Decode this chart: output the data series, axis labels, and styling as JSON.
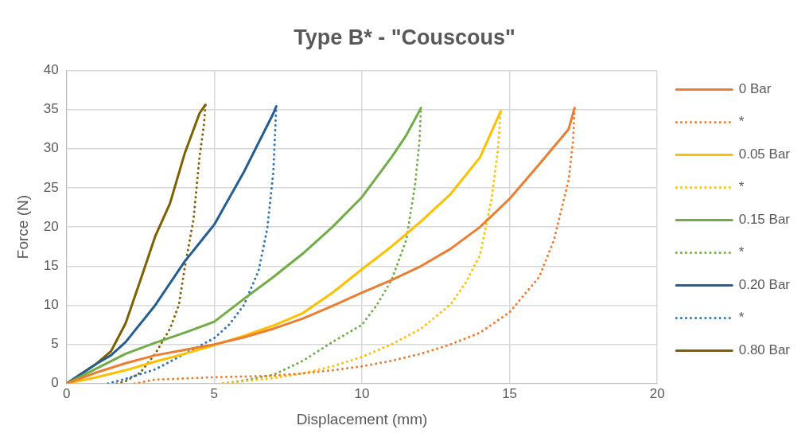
{
  "chart_data": {
    "type": "line",
    "title": "Type B* - \"Couscous\"",
    "xlabel": "Displacement (mm)",
    "ylabel": "Force (N)",
    "xlim": [
      0,
      20
    ],
    "xticks": [
      0,
      5,
      10,
      15,
      20
    ],
    "ylim": [
      0,
      40
    ],
    "yticks": [
      0,
      5,
      10,
      15,
      20,
      25,
      30,
      35,
      40
    ],
    "grid": true,
    "legend": "right",
    "marker": "none",
    "series": [
      {
        "name": "0 Bar",
        "color": "#ed7d31",
        "line_style": "solid",
        "x": [
          0,
          1,
          2,
          3,
          4,
          5,
          6,
          7,
          8,
          9,
          10,
          11,
          12,
          13,
          14,
          15,
          16,
          17,
          17.2
        ],
        "values": [
          0,
          1.4,
          2.6,
          3.6,
          4.3,
          5.0,
          5.9,
          7.0,
          8.3,
          9.9,
          11.6,
          13.2,
          15.0,
          17.2,
          20,
          23.6,
          28,
          32.5,
          35.2
        ]
      },
      {
        "name": "*",
        "color": "#ed7d31",
        "line_style": "dotted",
        "x": [
          2.3,
          3,
          5,
          7,
          8,
          9,
          10,
          11,
          12,
          13,
          14,
          15,
          16,
          16.5,
          17,
          17.15,
          17.2
        ],
        "values": [
          0,
          0.5,
          0.8,
          1.0,
          1.3,
          1.7,
          2.2,
          2.9,
          3.8,
          5,
          6.5,
          9.1,
          13.6,
          18.3,
          26,
          31,
          35.2
        ]
      },
      {
        "name": "0.05 Bar",
        "color": "#ffc000",
        "line_style": "solid",
        "x": [
          0,
          1,
          2,
          3,
          4,
          5,
          6,
          7,
          8,
          9,
          10,
          11,
          12,
          13,
          14,
          14.7
        ],
        "values": [
          0,
          0.8,
          1.7,
          2.8,
          3.8,
          4.9,
          6.1,
          7.4,
          9,
          11.6,
          14.6,
          17.5,
          20.7,
          24.2,
          28.9,
          34.8
        ]
      },
      {
        "name": "*",
        "color": "#ffc000",
        "line_style": "dotted",
        "x": [
          5.3,
          6,
          7,
          8,
          9,
          10,
          11,
          12,
          13,
          13.5,
          14,
          14.4,
          14.6,
          14.7
        ],
        "values": [
          0,
          0.3,
          0.7,
          1.3,
          2.2,
          3.4,
          5,
          7,
          10.1,
          12.8,
          16.4,
          23.8,
          29.7,
          34.8
        ]
      },
      {
        "name": "0.15 Bar",
        "color": "#70ad47",
        "line_style": "solid",
        "x": [
          0,
          1,
          2,
          3,
          4,
          5,
          6,
          7,
          8,
          9,
          10,
          11,
          11.5,
          12
        ],
        "values": [
          0,
          1.9,
          3.8,
          5.2,
          6.5,
          7.9,
          10.8,
          13.6,
          16.6,
          20,
          23.8,
          28.9,
          31.7,
          35.2
        ]
      },
      {
        "name": "*",
        "color": "#70ad47",
        "line_style": "dotted",
        "x": [
          5.3,
          6,
          7,
          8,
          9,
          10,
          10.5,
          11,
          11.5,
          11.8,
          11.95,
          12
        ],
        "values": [
          0,
          0.4,
          1.1,
          2.9,
          5.3,
          7.5,
          10,
          13.2,
          18.3,
          25.4,
          31,
          35.2
        ]
      },
      {
        "name": "0.20 Bar",
        "color": "#255e91",
        "line_style": "solid",
        "x": [
          0,
          1,
          1.5,
          2,
          3,
          4,
          5,
          6,
          7,
          7.1
        ],
        "values": [
          0,
          2.5,
          3.6,
          5.3,
          10,
          15.6,
          20.3,
          27,
          34.5,
          35.4
        ]
      },
      {
        "name": "*",
        "color": "#2e75b6",
        "line_style": "dotted",
        "x": [
          1.4,
          2,
          3,
          4,
          5,
          5.5,
          6,
          6.5,
          6.8,
          7,
          7.1
        ],
        "values": [
          0,
          0.6,
          1.8,
          3.8,
          5.8,
          7.5,
          10,
          14.4,
          19.9,
          27,
          35.4
        ]
      },
      {
        "name": "0.80 Bar",
        "color": "#7f6000",
        "line_style": "solid",
        "x": [
          0,
          1,
          1.5,
          2,
          2.5,
          3,
          3.5,
          4,
          4.5,
          4.7
        ],
        "values": [
          0,
          2.5,
          4.1,
          7.7,
          13.2,
          18.8,
          23,
          29.4,
          34.5,
          35.6
        ]
      },
      {
        "color": "#806000",
        "line_style": "dotted",
        "x": [
          1.7,
          2,
          2.5,
          3,
          3.5,
          3.8,
          4,
          4.3,
          4.5,
          4.65,
          4.7
        ],
        "values": [
          0,
          0.3,
          1.4,
          3.8,
          7,
          10,
          14.8,
          21,
          28.9,
          33,
          35.6
        ]
      }
    ]
  }
}
